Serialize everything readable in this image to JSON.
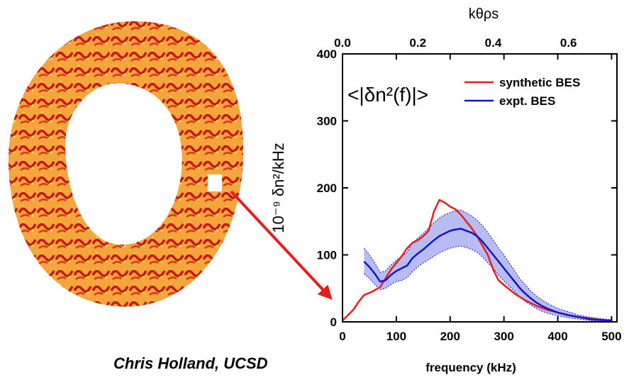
{
  "credit": "Chris Holland, UCSD",
  "colors": {
    "synthetic": "#e81e1e",
    "expt": "#1414cc",
    "band": "#aab0f0",
    "arrow": "#e81e1e",
    "ring_base": "#f4a63c",
    "ring_streak": "#c81616",
    "ring_highlight": "#e4e050"
  },
  "chart_data": {
    "type": "line",
    "title": "<|δn²(f)|>",
    "xlabel": "frequency (kHz)",
    "ylabel": "10⁻⁹ δn²/kHz",
    "top_axis_label": "kθρs",
    "xlim": [
      0,
      510
    ],
    "ylim": [
      0,
      400
    ],
    "x_ticks": [
      "0",
      "100",
      "200",
      "300",
      "400",
      "500"
    ],
    "y_ticks": [
      "0",
      "100",
      "200",
      "300",
      "400"
    ],
    "top_ticks": [
      "0.0",
      "0.2",
      "0.4",
      "0.6"
    ],
    "top_tick_freqs": [
      0,
      140,
      280,
      420
    ],
    "legend_position": "top-right",
    "grid": false,
    "series": [
      {
        "name": "synthetic BES",
        "x": [
          0,
          10,
          20,
          30,
          40,
          55,
          70,
          80,
          90,
          100,
          110,
          120,
          130,
          140,
          150,
          160,
          170,
          180,
          190,
          200,
          210,
          220,
          230,
          240,
          250,
          260,
          270,
          280,
          290,
          300,
          320,
          340,
          360,
          380,
          400,
          420,
          440,
          460,
          480,
          500
        ],
        "y": [
          2,
          10,
          18,
          30,
          40,
          45,
          52,
          65,
          78,
          88,
          98,
          110,
          118,
          122,
          128,
          136,
          165,
          182,
          178,
          172,
          168,
          160,
          150,
          140,
          128,
          114,
          100,
          78,
          62,
          55,
          42,
          32,
          24,
          18,
          14,
          10,
          7,
          5,
          3,
          2
        ]
      },
      {
        "name": "expt. BES",
        "x": [
          40,
          50,
          60,
          70,
          80,
          90,
          100,
          110,
          120,
          130,
          140,
          150,
          160,
          170,
          180,
          190,
          200,
          210,
          220,
          230,
          240,
          250,
          260,
          270,
          280,
          290,
          300,
          310,
          320,
          330,
          340,
          350,
          360,
          370,
          380,
          390,
          400,
          420,
          440,
          460,
          480,
          500
        ],
        "y": [
          90,
          82,
          72,
          60,
          62,
          70,
          76,
          80,
          84,
          95,
          102,
          108,
          115,
          122,
          128,
          132,
          136,
          138,
          139,
          136,
          133,
          128,
          120,
          110,
          100,
          90,
          80,
          70,
          60,
          50,
          42,
          35,
          29,
          24,
          20,
          17,
          14,
          10,
          7,
          4,
          3,
          2
        ]
      }
    ],
    "expt_band": {
      "x": [
        40,
        50,
        60,
        70,
        80,
        90,
        100,
        110,
        120,
        130,
        140,
        150,
        160,
        170,
        180,
        190,
        200,
        210,
        220,
        230,
        240,
        250,
        260,
        270,
        280,
        290,
        300,
        310,
        320,
        330,
        340,
        350,
        360,
        370,
        380,
        390,
        400,
        420,
        440,
        460,
        480,
        500
      ],
      "lower": [
        72,
        65,
        56,
        48,
        50,
        56,
        60,
        62,
        66,
        75,
        82,
        88,
        93,
        98,
        103,
        107,
        110,
        112,
        113,
        111,
        108,
        104,
        97,
        88,
        80,
        70,
        61,
        53,
        45,
        37,
        30,
        25,
        20,
        16,
        13,
        11,
        9,
        6,
        4,
        2,
        1,
        1
      ],
      "upper": [
        110,
        100,
        88,
        74,
        76,
        85,
        92,
        98,
        104,
        118,
        125,
        132,
        140,
        148,
        155,
        160,
        163,
        166,
        167,
        163,
        158,
        152,
        144,
        133,
        122,
        110,
        100,
        88,
        76,
        64,
        55,
        46,
        39,
        33,
        28,
        24,
        20,
        15,
        10,
        7,
        5,
        3
      ]
    }
  }
}
